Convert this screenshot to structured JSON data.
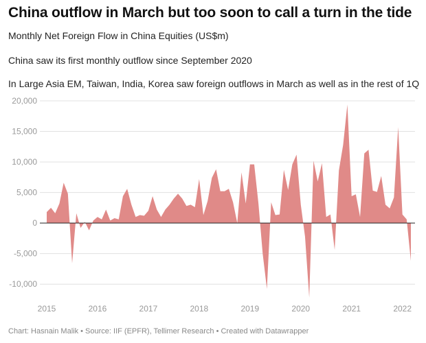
{
  "title": "China outflow in March but too soon to call a turn in the tide",
  "subtitle": "Monthly Net Foreign Flow in China Equities (US$m)",
  "note1": "China saw its first monthly outflow since September 2020",
  "note2": "In Large Asia EM, Taiwan, India, Korea saw foreign outflows in March as well as in the rest of 1Q",
  "footer": "Chart: Hasnain Malik • Source: IIF (EPFR), Tellimer Research • Created with Datawrapper",
  "colors": {
    "area": "#e08a88",
    "zero_line": "#222222",
    "grid": "#e0e0e0",
    "tick_text": "#999999"
  },
  "chart_data": {
    "type": "area",
    "title": "China outflow in March but too soon to call a turn in the tide",
    "xlabel": "",
    "ylabel": "",
    "ylim": [
      -12000,
      20000
    ],
    "yticks": [
      20000,
      15000,
      10000,
      5000,
      0,
      -5000,
      -10000
    ],
    "ytick_labels": [
      "20,000",
      "15,000",
      "10,000",
      "5,000",
      "0",
      "-5,000",
      "-10,000"
    ],
    "xticks": [
      2015,
      2016,
      2017,
      2018,
      2019,
      2020,
      2021,
      2022
    ],
    "xtick_labels": [
      "2015",
      "2016",
      "2017",
      "2018",
      "2019",
      "2020",
      "2021",
      "2022"
    ],
    "x_start": "2015-01",
    "x_end": "2022-03",
    "grid": true,
    "series": [
      {
        "values": [
          1800,
          2500,
          1600,
          3200,
          6600,
          4800,
          -6600,
          1600,
          -800,
          200,
          -1200,
          400,
          1000,
          600,
          2200,
          400,
          800,
          600,
          4400,
          5600,
          3000,
          1000,
          1300,
          1200,
          2000,
          4400,
          2200,
          1000,
          2200,
          3000,
          4000,
          4800,
          4000,
          2800,
          3000,
          2600,
          7200,
          1300,
          3600,
          7400,
          8800,
          5200,
          5200,
          5600,
          3400,
          0,
          8300,
          3200,
          9600,
          9600,
          3200,
          -5000,
          -10800,
          3400,
          1300,
          1400,
          8700,
          5400,
          9600,
          11200,
          3000,
          -2200,
          -12200,
          10200,
          6800,
          9800,
          1000,
          1400,
          -4400,
          8600,
          12800,
          19400,
          4400,
          4700,
          1000,
          11400,
          12000,
          5300,
          5100,
          7700,
          3000,
          2400,
          4200,
          15700,
          1400,
          600,
          -6200
        ]
      }
    ]
  }
}
